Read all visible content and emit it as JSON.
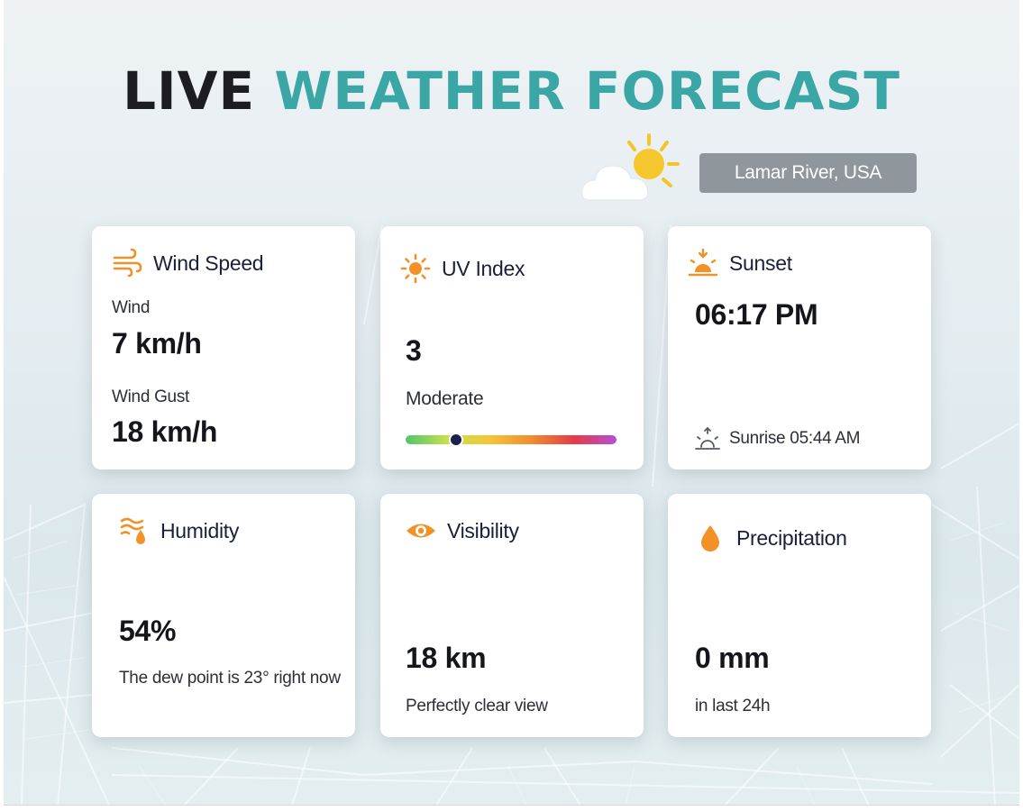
{
  "header": {
    "title_dark": "LIVE",
    "title_accent": "WEATHER FORECAST",
    "location": "Lamar River, USA",
    "condition_icon": "partly-cloudy-icon"
  },
  "colors": {
    "accent": "#3aa7a6",
    "icon_orange": "#f29126",
    "location_bg": "#8f979c"
  },
  "cards": {
    "wind": {
      "title": "Wind Speed",
      "icon": "wind-icon",
      "wind_label": "Wind",
      "wind_value": "7 km/h",
      "gust_label": "Wind Gust",
      "gust_value": "18 km/h"
    },
    "uv": {
      "title": "UV Index",
      "icon": "sun-icon",
      "value": "3",
      "level": "Moderate",
      "scale_position": 0.24
    },
    "sunset": {
      "title": "Sunset",
      "icon": "sunset-icon",
      "value": "06:17 PM",
      "sunrise_icon": "sunrise-icon",
      "sunrise_text": "Sunrise 05:44 AM"
    },
    "humidity": {
      "title": "Humidity",
      "icon": "humidity-icon",
      "value": "54%",
      "note": "The dew point is 23° right now"
    },
    "visibility": {
      "title": "Visibility",
      "icon": "eye-icon",
      "value": "18 km",
      "note": "Perfectly clear view"
    },
    "precipitation": {
      "title": "Precipitation",
      "icon": "droplet-icon",
      "value": "0 mm",
      "note": "in last 24h"
    }
  }
}
